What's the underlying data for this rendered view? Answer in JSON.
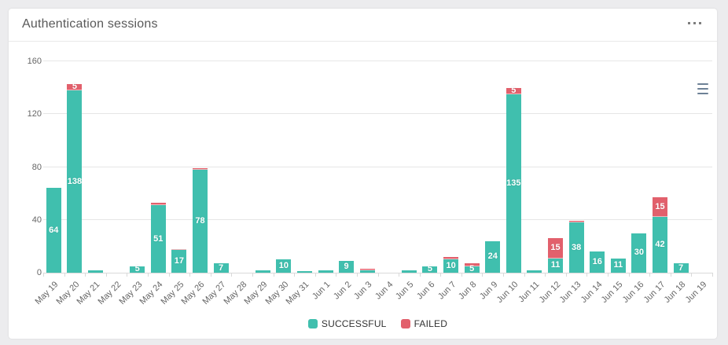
{
  "page": {
    "background": "#ececee"
  },
  "card": {
    "title": "Authentication sessions",
    "more_options_icon": "ellipsis-icon",
    "export_menu_icon": "hamburger-icon"
  },
  "chart_data": {
    "type": "bar",
    "stacked": true,
    "title": "Authentication sessions",
    "categories": [
      "May 19",
      "May 20",
      "May 21",
      "May 22",
      "May 23",
      "May 24",
      "May 25",
      "May 26",
      "May 27",
      "May 28",
      "May 29",
      "May 30",
      "May 31",
      "Jun 1",
      "Jun 2",
      "Jun 3",
      "Jun 4",
      "Jun 5",
      "Jun 6",
      "Jun 7",
      "Jun 8",
      "Jun 9",
      "Jun 10",
      "Jun 11",
      "Jun 12",
      "Jun 13",
      "Jun 14",
      "Jun 15",
      "Jun 16",
      "Jun 17",
      "Jun 18",
      "Jun 19"
    ],
    "series": [
      {
        "name": "SUCCESSFUL",
        "color": "#40bfae",
        "values": [
          64,
          138,
          2,
          0,
          5,
          51,
          17,
          78,
          7,
          0,
          2,
          10,
          1,
          2,
          9,
          2,
          0,
          2,
          5,
          10,
          5,
          24,
          135,
          2,
          11,
          38,
          16,
          11,
          30,
          42,
          7,
          0
        ]
      },
      {
        "name": "FAILED",
        "color": "#e2606c",
        "values": [
          0,
          5,
          0,
          0,
          0,
          2,
          1,
          1,
          0,
          0,
          0,
          0,
          0,
          0,
          0,
          1,
          0,
          0,
          0,
          2,
          2,
          0,
          5,
          0,
          15,
          1,
          0,
          0,
          0,
          15,
          0,
          0
        ]
      }
    ],
    "ylim": [
      0,
      160
    ],
    "yticks": [
      0,
      40,
      80,
      120,
      160
    ],
    "grid": true,
    "legend_position": "bottom",
    "xlabel_rotation": -45,
    "data_label_min_value": 5,
    "colors": {
      "successful": "#40bfae",
      "failed": "#e2606c",
      "gridline": "#e6e6e6",
      "axis_text": "#666666",
      "data_label": "#ffffff"
    }
  }
}
